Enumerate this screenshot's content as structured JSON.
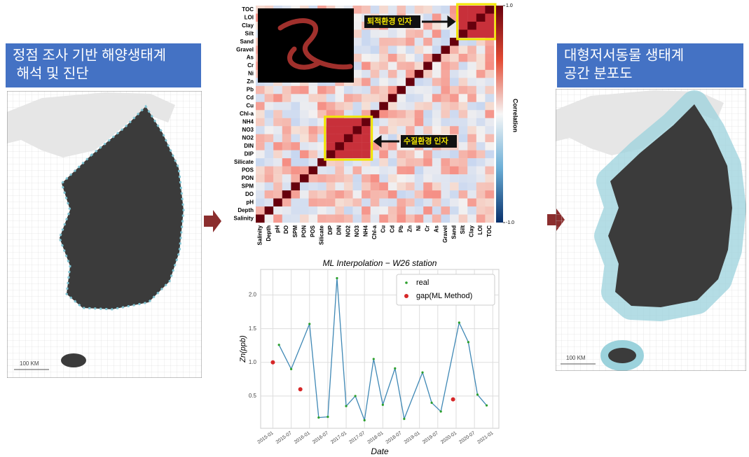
{
  "left_panel": {
    "title_lines": [
      "정점 조사 기반 해양생태계",
      " 해석 및 진단"
    ],
    "scale": "100 KM"
  },
  "right_panel": {
    "title_lines": [
      "대형저서동물 생태계",
      "공간 분포도"
    ],
    "scale": "100 KM"
  },
  "heatmap": {
    "labels": [
      "TOC",
      "LOI",
      "Clay",
      "Silt",
      "Sand",
      "Gravel",
      "As",
      "Cr",
      "Ni",
      "Zn",
      "Pb",
      "Cd",
      "Cu",
      "Chl-a",
      "NH4",
      "NO3",
      "NO2",
      "DIN",
      "DIP",
      "Silicate",
      "POS",
      "PON",
      "SPM",
      "DO",
      "pH",
      "Depth",
      "Salinity"
    ],
    "annotations": [
      "퇴적환경 인자",
      "수질환경 인자"
    ],
    "colorbar": {
      "label": "Correlation",
      "ticks": [
        {
          "value": 1,
          "label": "1.0"
        },
        {
          "value": -1,
          "label": "-1.0"
        }
      ]
    }
  },
  "chart_data": {
    "type": "line",
    "title": "ML Interpolation − W26 station",
    "x_label": "Date",
    "y_label": "Zn(ppb)",
    "series": [
      {
        "name": "real",
        "color": "#2ca02c",
        "line_color": "#3f88b5",
        "x": [
          "2015-03",
          "2015-07",
          "2016-01",
          "2016-04",
          "2016-07",
          "2016-10",
          "2017-01",
          "2017-04",
          "2017-07",
          "2017-10",
          "2018-01",
          "2018-05",
          "2018-08",
          "2019-02",
          "2019-05",
          "2019-08",
          "2020-02",
          "2020-05",
          "2020-08",
          "2020-11"
        ],
        "values": [
          1.26,
          0.9,
          1.57,
          0.18,
          0.19,
          2.25,
          0.35,
          0.5,
          0.14,
          1.05,
          0.37,
          0.91,
          0.16,
          0.85,
          0.4,
          0.27,
          1.59,
          1.3,
          0.52,
          0.36
        ]
      },
      {
        "name": "gap(ML Method)",
        "color": "#d62728",
        "x": [
          "2015-01",
          "2015-10",
          "2019-12"
        ],
        "values": [
          1.0,
          0.6,
          0.45
        ]
      }
    ],
    "xlim": [
      "2014-09",
      "2021-03"
    ],
    "xticks": [
      "2015-01",
      "2015-07",
      "2016-01",
      "2016-07",
      "2017-01",
      "2017-07",
      "2018-01",
      "2018-07",
      "2019-01",
      "2019-07",
      "2020-01",
      "2020-07",
      "2021-01"
    ],
    "ylim": [
      0.02,
      2.38
    ],
    "yticks": [
      0.5,
      {
        "value": 1,
        "label": "1.0"
      },
      1.5,
      {
        "value": 2,
        "label": "2.0"
      }
    ],
    "grid": true,
    "legend": "upper right"
  }
}
